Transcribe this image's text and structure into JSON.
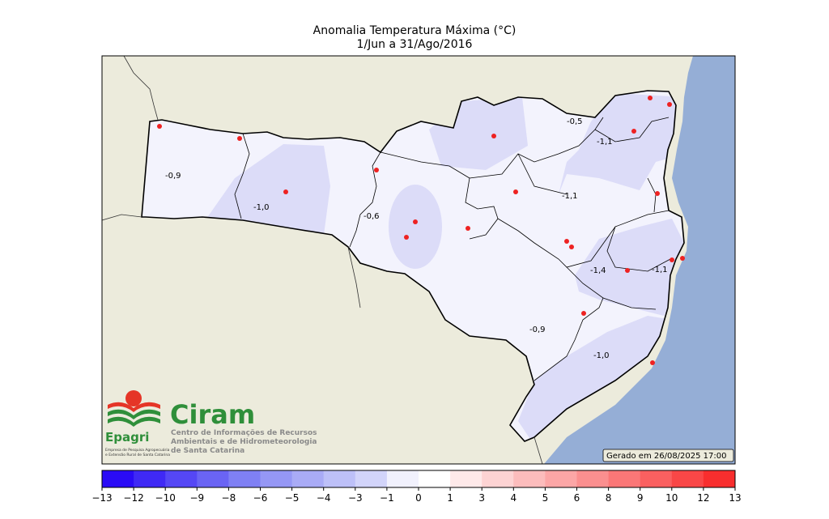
{
  "title": "Anomalia Temperatura Máxima (°C)",
  "subtitle": "1/Jun a 31/Ago/2016",
  "generated_label": "Gerado em 26/08/2025 17:00",
  "colors": {
    "land": "#ecebdc",
    "ocean": "#95aed6",
    "border": "#000000",
    "station": "#ee2222",
    "anomaly_light": "#f3f3fd",
    "anomaly_medium": "#dcdcf8"
  },
  "contour_labels": [
    "-0,5",
    "-1,1",
    "-0,9",
    "-1,0",
    "-0,6",
    "-1,1",
    "-1,4",
    "-1,1",
    "-0,9",
    "-1,0"
  ],
  "colorbar": {
    "ticks": [
      "-13",
      "-12",
      "-10",
      "-9",
      "-8",
      "-6",
      "-5",
      "-4",
      "-3",
      "-1",
      "0",
      "1",
      "3",
      "4",
      "5",
      "6",
      "8",
      "9",
      "10",
      "12",
      "13"
    ],
    "colors": [
      "#2a0bf6",
      "#3f29f5",
      "#5547f5",
      "#6a64f4",
      "#7f80f4",
      "#9597f5",
      "#a9abf6",
      "#bdc0f8",
      "#d2d4fa",
      "#f1f1fd",
      "#ffffff",
      "#fee9e9",
      "#fdd3d3",
      "#fcbcbc",
      "#fca6a6",
      "#fb8f8f",
      "#fb7777",
      "#fa6060",
      "#f94747",
      "#f82e2e"
    ]
  },
  "logo": {
    "epagri": "Epagri",
    "epagri_caption_1": "Empresa de Pesquisa Agropecuária",
    "epagri_caption_2": "e Extensão Rural de Santa Catarina",
    "ciram": "Ciram",
    "ciram_line_1": "Centro de Informações de Recursos",
    "ciram_line_2": "Ambientais e de Hidrometeorologia",
    "ciram_line_3": "de Santa Catarina"
  }
}
